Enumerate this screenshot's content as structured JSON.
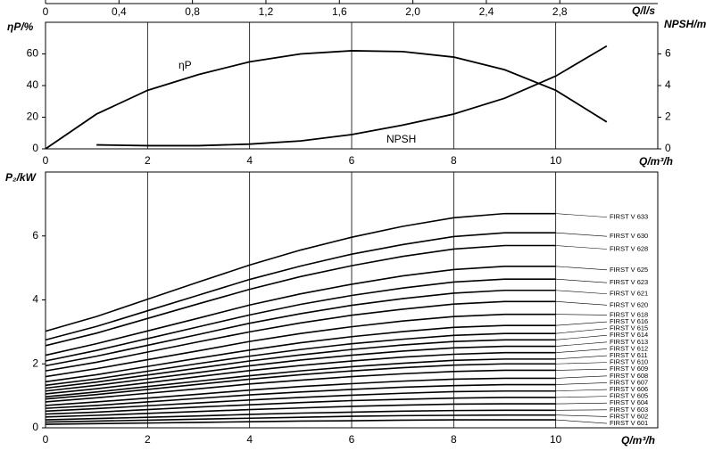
{
  "chart_data": [
    {
      "type": "line",
      "xlabel": "Q/m³/h",
      "x2label": "Q/l/s",
      "ylabel": "ηP/%",
      "y2label": "NPSH/m",
      "x": [
        0,
        1,
        2,
        3,
        4,
        5,
        6,
        7,
        8,
        9,
        10,
        11
      ],
      "xlim": [
        0,
        12
      ],
      "xticks": [
        0,
        2,
        4,
        6,
        8,
        10
      ],
      "x2lim": [
        0,
        3.3333
      ],
      "x2ticks": [
        0,
        {
          "value": 0.4,
          "label": "0,4"
        },
        {
          "value": 0.8,
          "label": "0,8"
        },
        {
          "value": 1.2,
          "label": "1,2"
        },
        {
          "value": 1.6,
          "label": "1,6"
        },
        {
          "value": 2.0,
          "label": "2,0"
        },
        {
          "value": 2.4,
          "label": "2,4"
        },
        {
          "value": 2.8,
          "label": "2,8"
        }
      ],
      "ylim": [
        0,
        80
      ],
      "yticks": [
        0,
        20,
        40,
        60
      ],
      "y2lim": [
        0,
        8
      ],
      "y2ticks": [
        0,
        2,
        4,
        6
      ],
      "grid": "x",
      "series": [
        {
          "name": "ηP",
          "color": "#000000",
          "values": [
            0,
            22,
            37,
            47,
            55,
            60,
            62,
            61.5,
            58,
            50,
            37,
            17
          ]
        },
        {
          "name": "NPSH",
          "color": "#000000",
          "axis": "y2",
          "values": [
            null,
            0.25,
            0.2,
            0.2,
            0.3,
            0.5,
            0.9,
            1.5,
            2.2,
            3.2,
            4.6,
            6.5
          ]
        }
      ]
    },
    {
      "type": "line",
      "xlabel": "Q/m³/h",
      "ylabel": "P₂/kW",
      "x": [
        0,
        1,
        2,
        3,
        4,
        5,
        6,
        7,
        8,
        9,
        10
      ],
      "xlim": [
        0,
        12
      ],
      "xticks": [
        0,
        2,
        4,
        6,
        8,
        10
      ],
      "ylim": [
        0,
        8
      ],
      "yticks": [
        0,
        2,
        4,
        6
      ],
      "grid": "x",
      "series": [
        {
          "name": "FIRST V 633",
          "color": "#000000",
          "values": [
            3.02,
            3.48,
            4.02,
            4.56,
            5.09,
            5.56,
            5.96,
            6.3,
            6.57,
            6.7,
            6.7
          ]
        },
        {
          "name": "FIRST V 630",
          "color": "#000000",
          "values": [
            2.75,
            3.17,
            3.66,
            4.15,
            4.64,
            5.06,
            5.43,
            5.73,
            5.98,
            6.1,
            6.1
          ]
        },
        {
          "name": "FIRST V 628",
          "color": "#000000",
          "values": [
            2.57,
            2.96,
            3.42,
            3.88,
            4.33,
            4.73,
            5.07,
            5.36,
            5.59,
            5.7,
            5.7
          ]
        },
        {
          "name": "FIRST V 625",
          "color": "#000000",
          "values": [
            2.27,
            2.63,
            3.03,
            3.43,
            3.84,
            4.19,
            4.49,
            4.75,
            4.95,
            5.05,
            5.05
          ]
        },
        {
          "name": "FIRST V 623",
          "color": "#000000",
          "values": [
            2.09,
            2.42,
            2.79,
            3.16,
            3.53,
            3.86,
            4.14,
            4.37,
            4.56,
            4.65,
            4.65
          ]
        },
        {
          "name": "FIRST V 621",
          "color": "#000000",
          "values": [
            1.94,
            2.24,
            2.58,
            2.92,
            3.27,
            3.57,
            3.83,
            4.04,
            4.21,
            4.3,
            4.3
          ]
        },
        {
          "name": "FIRST V 620",
          "color": "#000000",
          "values": [
            1.78,
            2.05,
            2.37,
            2.69,
            3.0,
            3.28,
            3.52,
            3.71,
            3.87,
            3.95,
            3.95
          ]
        },
        {
          "name": "FIRST V 618",
          "color": "#000000",
          "values": [
            1.6,
            1.85,
            2.13,
            2.41,
            2.7,
            2.95,
            3.16,
            3.34,
            3.48,
            3.55,
            3.55
          ]
        },
        {
          "name": "FIRST V 616",
          "color": "#000000",
          "values": [
            1.44,
            1.66,
            1.92,
            2.18,
            2.43,
            2.66,
            2.85,
            3.01,
            3.14,
            3.2,
            3.2
          ]
        },
        {
          "name": "FIRST V 615",
          "color": "#000000",
          "values": [
            1.33,
            1.53,
            1.77,
            2.01,
            2.24,
            2.45,
            2.63,
            2.77,
            2.89,
            2.95,
            2.95
          ]
        },
        {
          "name": "FIRST V 614",
          "color": "#000000",
          "values": [
            1.24,
            1.43,
            1.65,
            1.87,
            2.09,
            2.28,
            2.45,
            2.59,
            2.7,
            2.75,
            2.75
          ]
        },
        {
          "name": "FIRST V 613",
          "color": "#000000",
          "values": [
            1.15,
            1.33,
            1.53,
            1.73,
            1.94,
            2.12,
            2.27,
            2.4,
            2.5,
            2.55,
            2.55
          ]
        },
        {
          "name": "FIRST V 612",
          "color": "#000000",
          "values": [
            1.06,
            1.22,
            1.41,
            1.6,
            1.79,
            1.95,
            2.09,
            2.21,
            2.3,
            2.35,
            2.35
          ]
        },
        {
          "name": "FIRST V 611",
          "color": "#000000",
          "values": [
            0.97,
            1.12,
            1.29,
            1.46,
            1.63,
            1.78,
            1.91,
            2.02,
            2.11,
            2.15,
            2.15
          ]
        },
        {
          "name": "FIRST V 610",
          "color": "#000000",
          "values": [
            0.9,
            1.04,
            1.2,
            1.36,
            1.52,
            1.66,
            1.78,
            1.88,
            1.96,
            2.0,
            2.0
          ]
        },
        {
          "name": "FIRST V 609",
          "color": "#000000",
          "values": [
            0.81,
            0.94,
            1.08,
            1.22,
            1.37,
            1.49,
            1.6,
            1.69,
            1.76,
            1.8,
            1.8
          ]
        },
        {
          "name": "FIRST V 608",
          "color": "#000000",
          "values": [
            0.7,
            0.81,
            0.93,
            1.05,
            1.18,
            1.29,
            1.38,
            1.46,
            1.52,
            1.55,
            1.55
          ]
        },
        {
          "name": "FIRST V 607",
          "color": "#000000",
          "values": [
            0.61,
            0.7,
            0.81,
            0.92,
            1.03,
            1.12,
            1.2,
            1.27,
            1.32,
            1.35,
            1.35
          ]
        },
        {
          "name": "FIRST V 606",
          "color": "#000000",
          "values": [
            0.52,
            0.6,
            0.69,
            0.78,
            0.87,
            0.95,
            1.02,
            1.08,
            1.13,
            1.15,
            1.15
          ]
        },
        {
          "name": "FIRST V 605",
          "color": "#000000",
          "values": [
            0.43,
            0.49,
            0.57,
            0.65,
            0.72,
            0.79,
            0.85,
            0.89,
            0.93,
            0.95,
            0.95
          ]
        },
        {
          "name": "FIRST V 604",
          "color": "#000000",
          "values": [
            0.34,
            0.39,
            0.45,
            0.51,
            0.57,
            0.62,
            0.67,
            0.71,
            0.74,
            0.75,
            0.75
          ]
        },
        {
          "name": "FIRST V 603",
          "color": "#000000",
          "values": [
            0.25,
            0.29,
            0.33,
            0.37,
            0.42,
            0.46,
            0.49,
            0.52,
            0.54,
            0.55,
            0.55
          ]
        },
        {
          "name": "FIRST V 602",
          "color": "#000000",
          "values": [
            0.18,
            0.21,
            0.24,
            0.27,
            0.3,
            0.33,
            0.36,
            0.38,
            0.39,
            0.4,
            0.4
          ]
        },
        {
          "name": "FIRST V 601",
          "color": "#000000",
          "values": [
            0.11,
            0.13,
            0.15,
            0.17,
            0.19,
            0.21,
            0.22,
            0.24,
            0.25,
            0.25,
            0.25
          ]
        }
      ]
    }
  ]
}
